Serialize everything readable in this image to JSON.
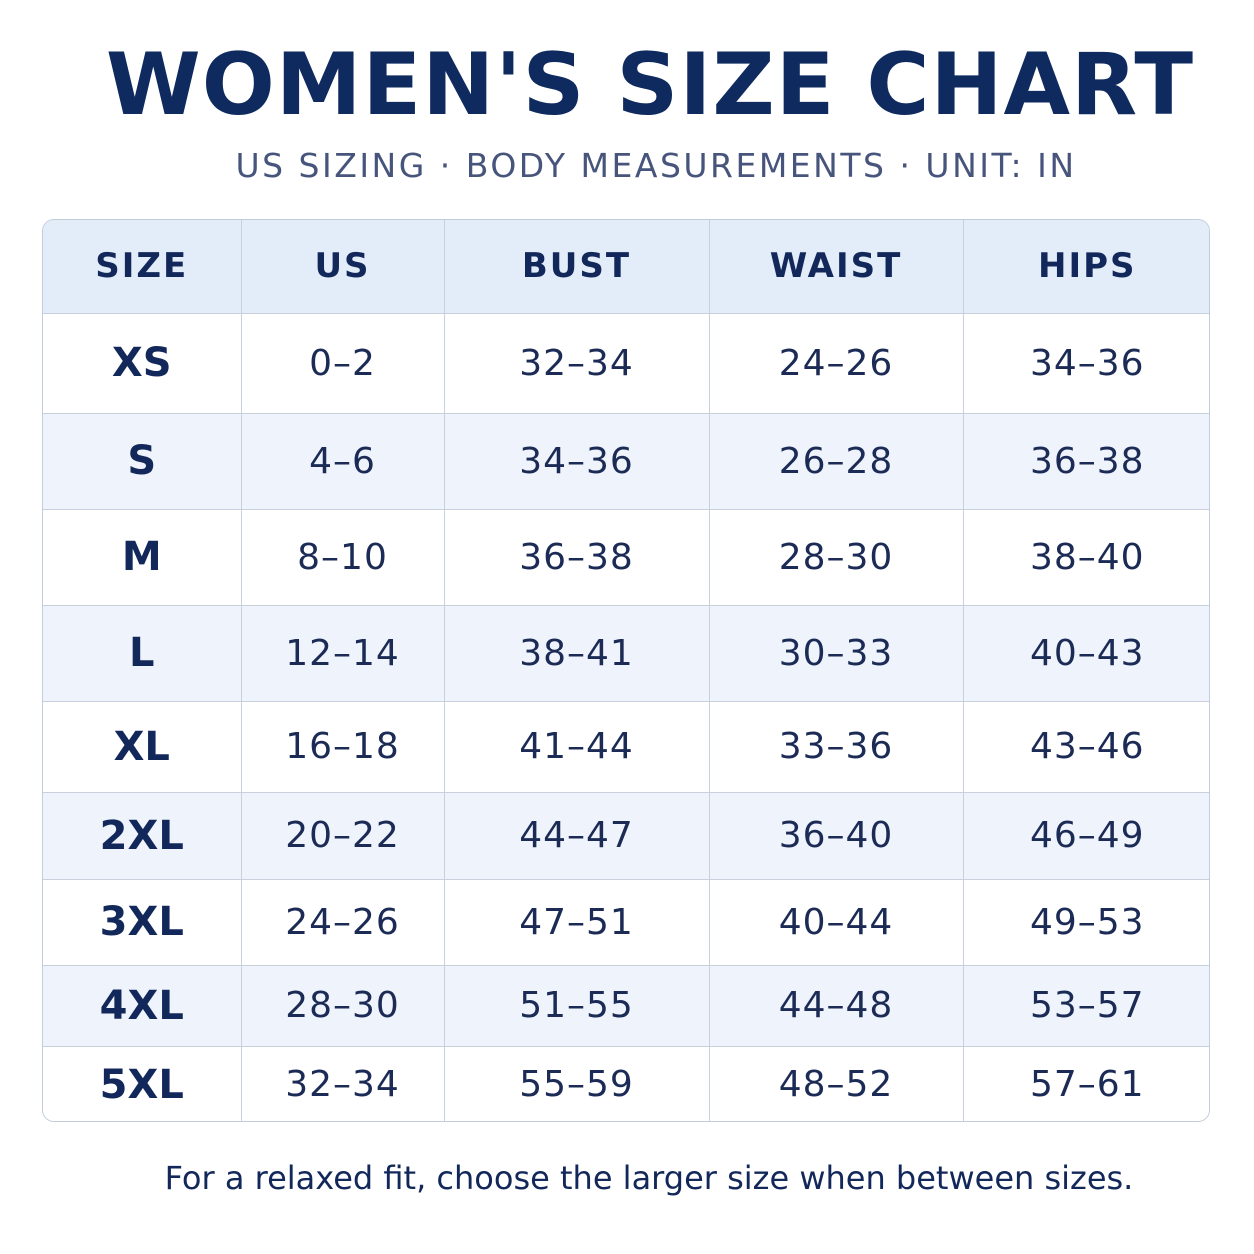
{
  "title": "WOMEN'S SIZE CHART",
  "subtitle": "US SIZING · BODY MEASUREMENTS · UNIT: IN",
  "table": {
    "headers": [
      "SIZE",
      "US",
      "BUST",
      "WAIST",
      "HIPS"
    ],
    "rows": [
      [
        "XS",
        "0–2",
        "32–34",
        "24–26",
        "34–36"
      ],
      [
        "S",
        "4–6",
        "34–36",
        "26–28",
        "36–38"
      ],
      [
        "M",
        "8–10",
        "36–38",
        "28–30",
        "38–40"
      ],
      [
        "L",
        "12–14",
        "38–41",
        "30–33",
        "40–43"
      ],
      [
        "XL",
        "16–18",
        "41–44",
        "33–36",
        "43–46"
      ],
      [
        "2XL",
        "20–22",
        "44–47",
        "36–40",
        "46–49"
      ],
      [
        "3XL",
        "24–26",
        "47–51",
        "40–44",
        "49–53"
      ],
      [
        "4XL",
        "28–30",
        "51–55",
        "44–48",
        "53–57"
      ],
      [
        "5XL",
        "32–34",
        "55–59",
        "48–52",
        "57–61"
      ]
    ]
  },
  "footnote": "For a relaxed fit, choose the larger size when between sizes.",
  "colors": {
    "title": "#0f2a5e",
    "header_bg": "#e3ecf9",
    "stripe_bg": "#eff4fc",
    "border": "#c8d0de"
  }
}
